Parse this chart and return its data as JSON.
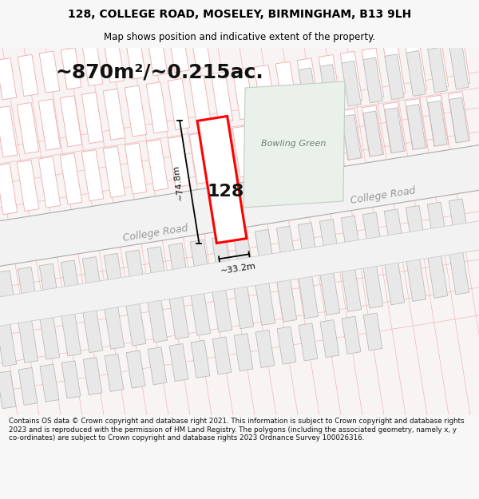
{
  "title_line1": "128, COLLEGE ROAD, MOSELEY, BIRMINGHAM, B13 9LH",
  "title_line2": "Map shows position and indicative extent of the property.",
  "area_text": "~870m²/~0.215ac.",
  "label_128": "128",
  "label_bowling_green": "Bowling Green",
  "label_college_road": "College Road",
  "label_college_road2": "College Road",
  "dim_vertical": "~74.8m",
  "dim_horizontal": "~33.2m",
  "footer_text": "Contains OS data © Crown copyright and database right 2021. This information is subject to Crown copyright and database rights 2023 and is reproduced with the permission of HM Land Registry. The polygons (including the associated geometry, namely x, y co-ordinates) are subject to Crown copyright and database rights 2023 Ordnance Survey 100026316.",
  "bg_color": "#f7f7f7",
  "map_bg": "#f8f4f4",
  "road_fill": "#f2f2f2",
  "road_edge_gray": "#aaaaaa",
  "road_edge_light": "#cccccc",
  "strip_pink_fill": "#ffffff",
  "strip_pink_edge": "#f0aaaa",
  "strip_gray_fill": "#e8e8e8",
  "strip_gray_edge": "#bbbbbb",
  "bowling_fill": "#eaf0ea",
  "bowling_edge": "#c0d0c0",
  "property_fill": "#ffffff",
  "property_edge": "#ff0000",
  "grid_pink": "#f0b8b8",
  "road_label_color": "#999999",
  "dim_color": "#111111",
  "text_color": "#111111",
  "title_fontsize": 10,
  "subtitle_fontsize": 8.5,
  "area_fontsize": 18,
  "footer_fontsize": 6.3,
  "road_label_fontsize": 9,
  "dim_fontsize": 8,
  "label128_fontsize": 16,
  "bowling_fontsize": 8
}
